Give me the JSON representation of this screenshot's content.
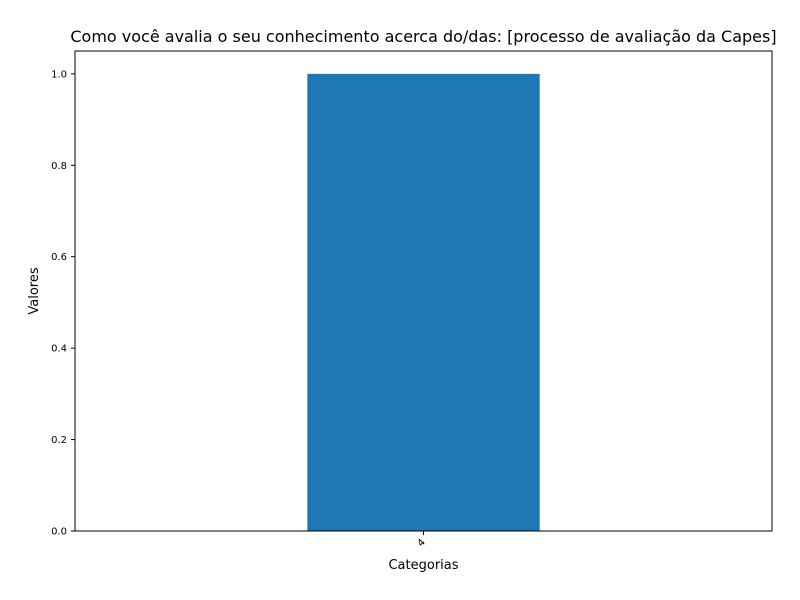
{
  "chart_data": {
    "type": "bar",
    "title": "Como você avalia o seu conhecimento acerca do/das: [processo de avaliação da Capes]",
    "xlabel": "Categorias",
    "ylabel": "Valores",
    "categories": [
      "4"
    ],
    "values": [
      1.0
    ],
    "ylim": [
      0,
      1.05
    ],
    "yticks": [
      0.0,
      0.2,
      0.4,
      0.6,
      0.8,
      1.0
    ],
    "ytick_labels": [
      "0.0",
      "0.2",
      "0.4",
      "0.6",
      "0.8",
      "1.0"
    ],
    "bar_color": "#1f77b4",
    "grid": false,
    "legend": "none",
    "xtick_rotation_degrees": -45
  }
}
